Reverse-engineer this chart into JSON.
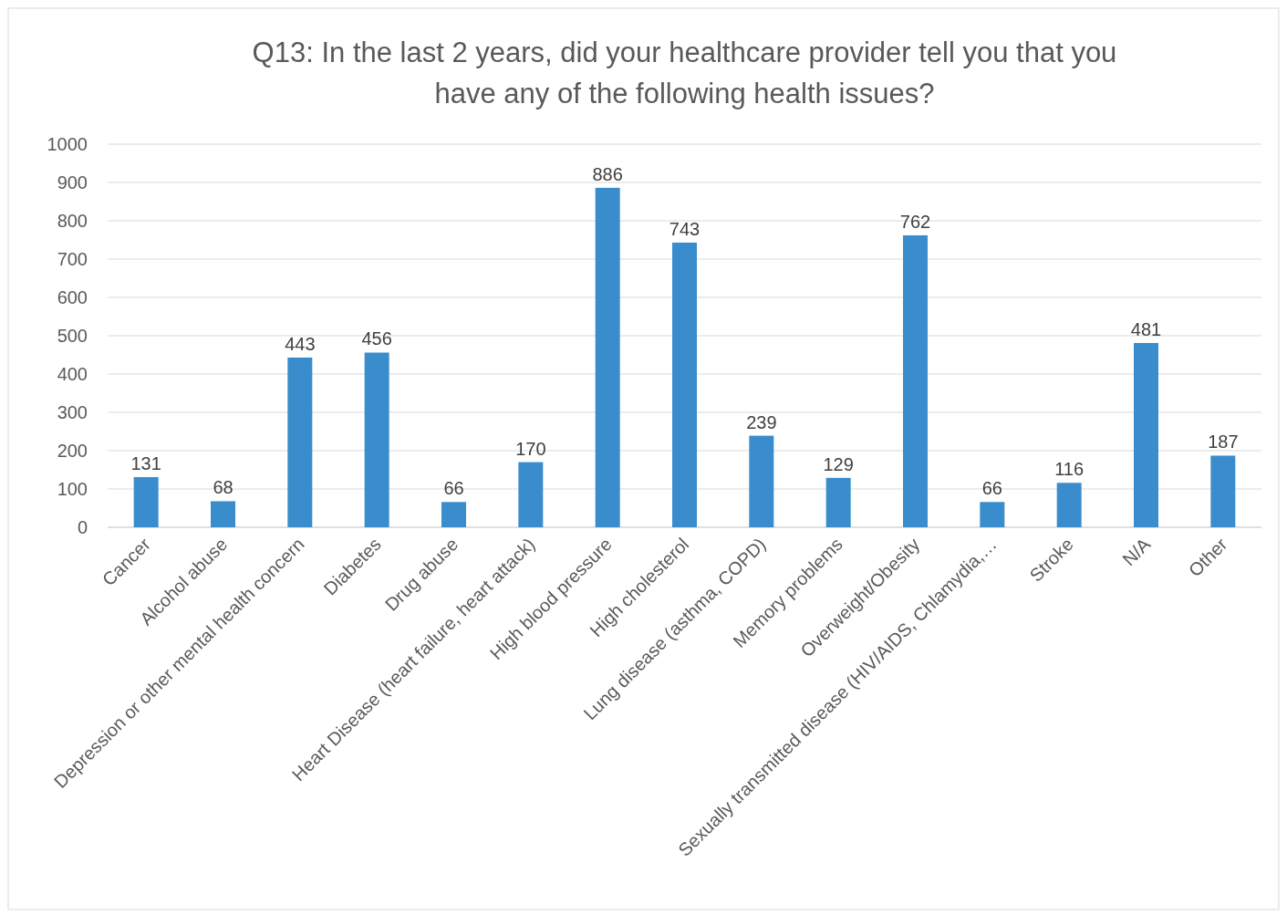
{
  "chart_data": {
    "type": "bar",
    "title": "Q13: In the last 2 years, did your healthcare provider tell you that you have any of the following health issues?",
    "categories": [
      "Cancer",
      "Alcohol abuse",
      "Depression or other mental health concern",
      "Diabetes",
      "Drug abuse",
      "Heart Disease (heart failure, heart attack)",
      "High blood pressure",
      "High cholesterol",
      "Lung disease (asthma, COPD)",
      "Memory problems",
      "Overweight/Obesity",
      "Sexually transmitted disease (HIV/AIDS, Chlamydia,…",
      "Stroke",
      "N/A",
      "Other"
    ],
    "values": [
      131,
      68,
      443,
      456,
      66,
      170,
      886,
      743,
      239,
      129,
      762,
      66,
      116,
      481,
      187
    ],
    "color": "#3a8dcc",
    "ylim": [
      0,
      1000
    ],
    "yticks": [
      0,
      100,
      200,
      300,
      400,
      500,
      600,
      700,
      800,
      900,
      1000
    ],
    "grid": "y",
    "data_labels": true
  }
}
